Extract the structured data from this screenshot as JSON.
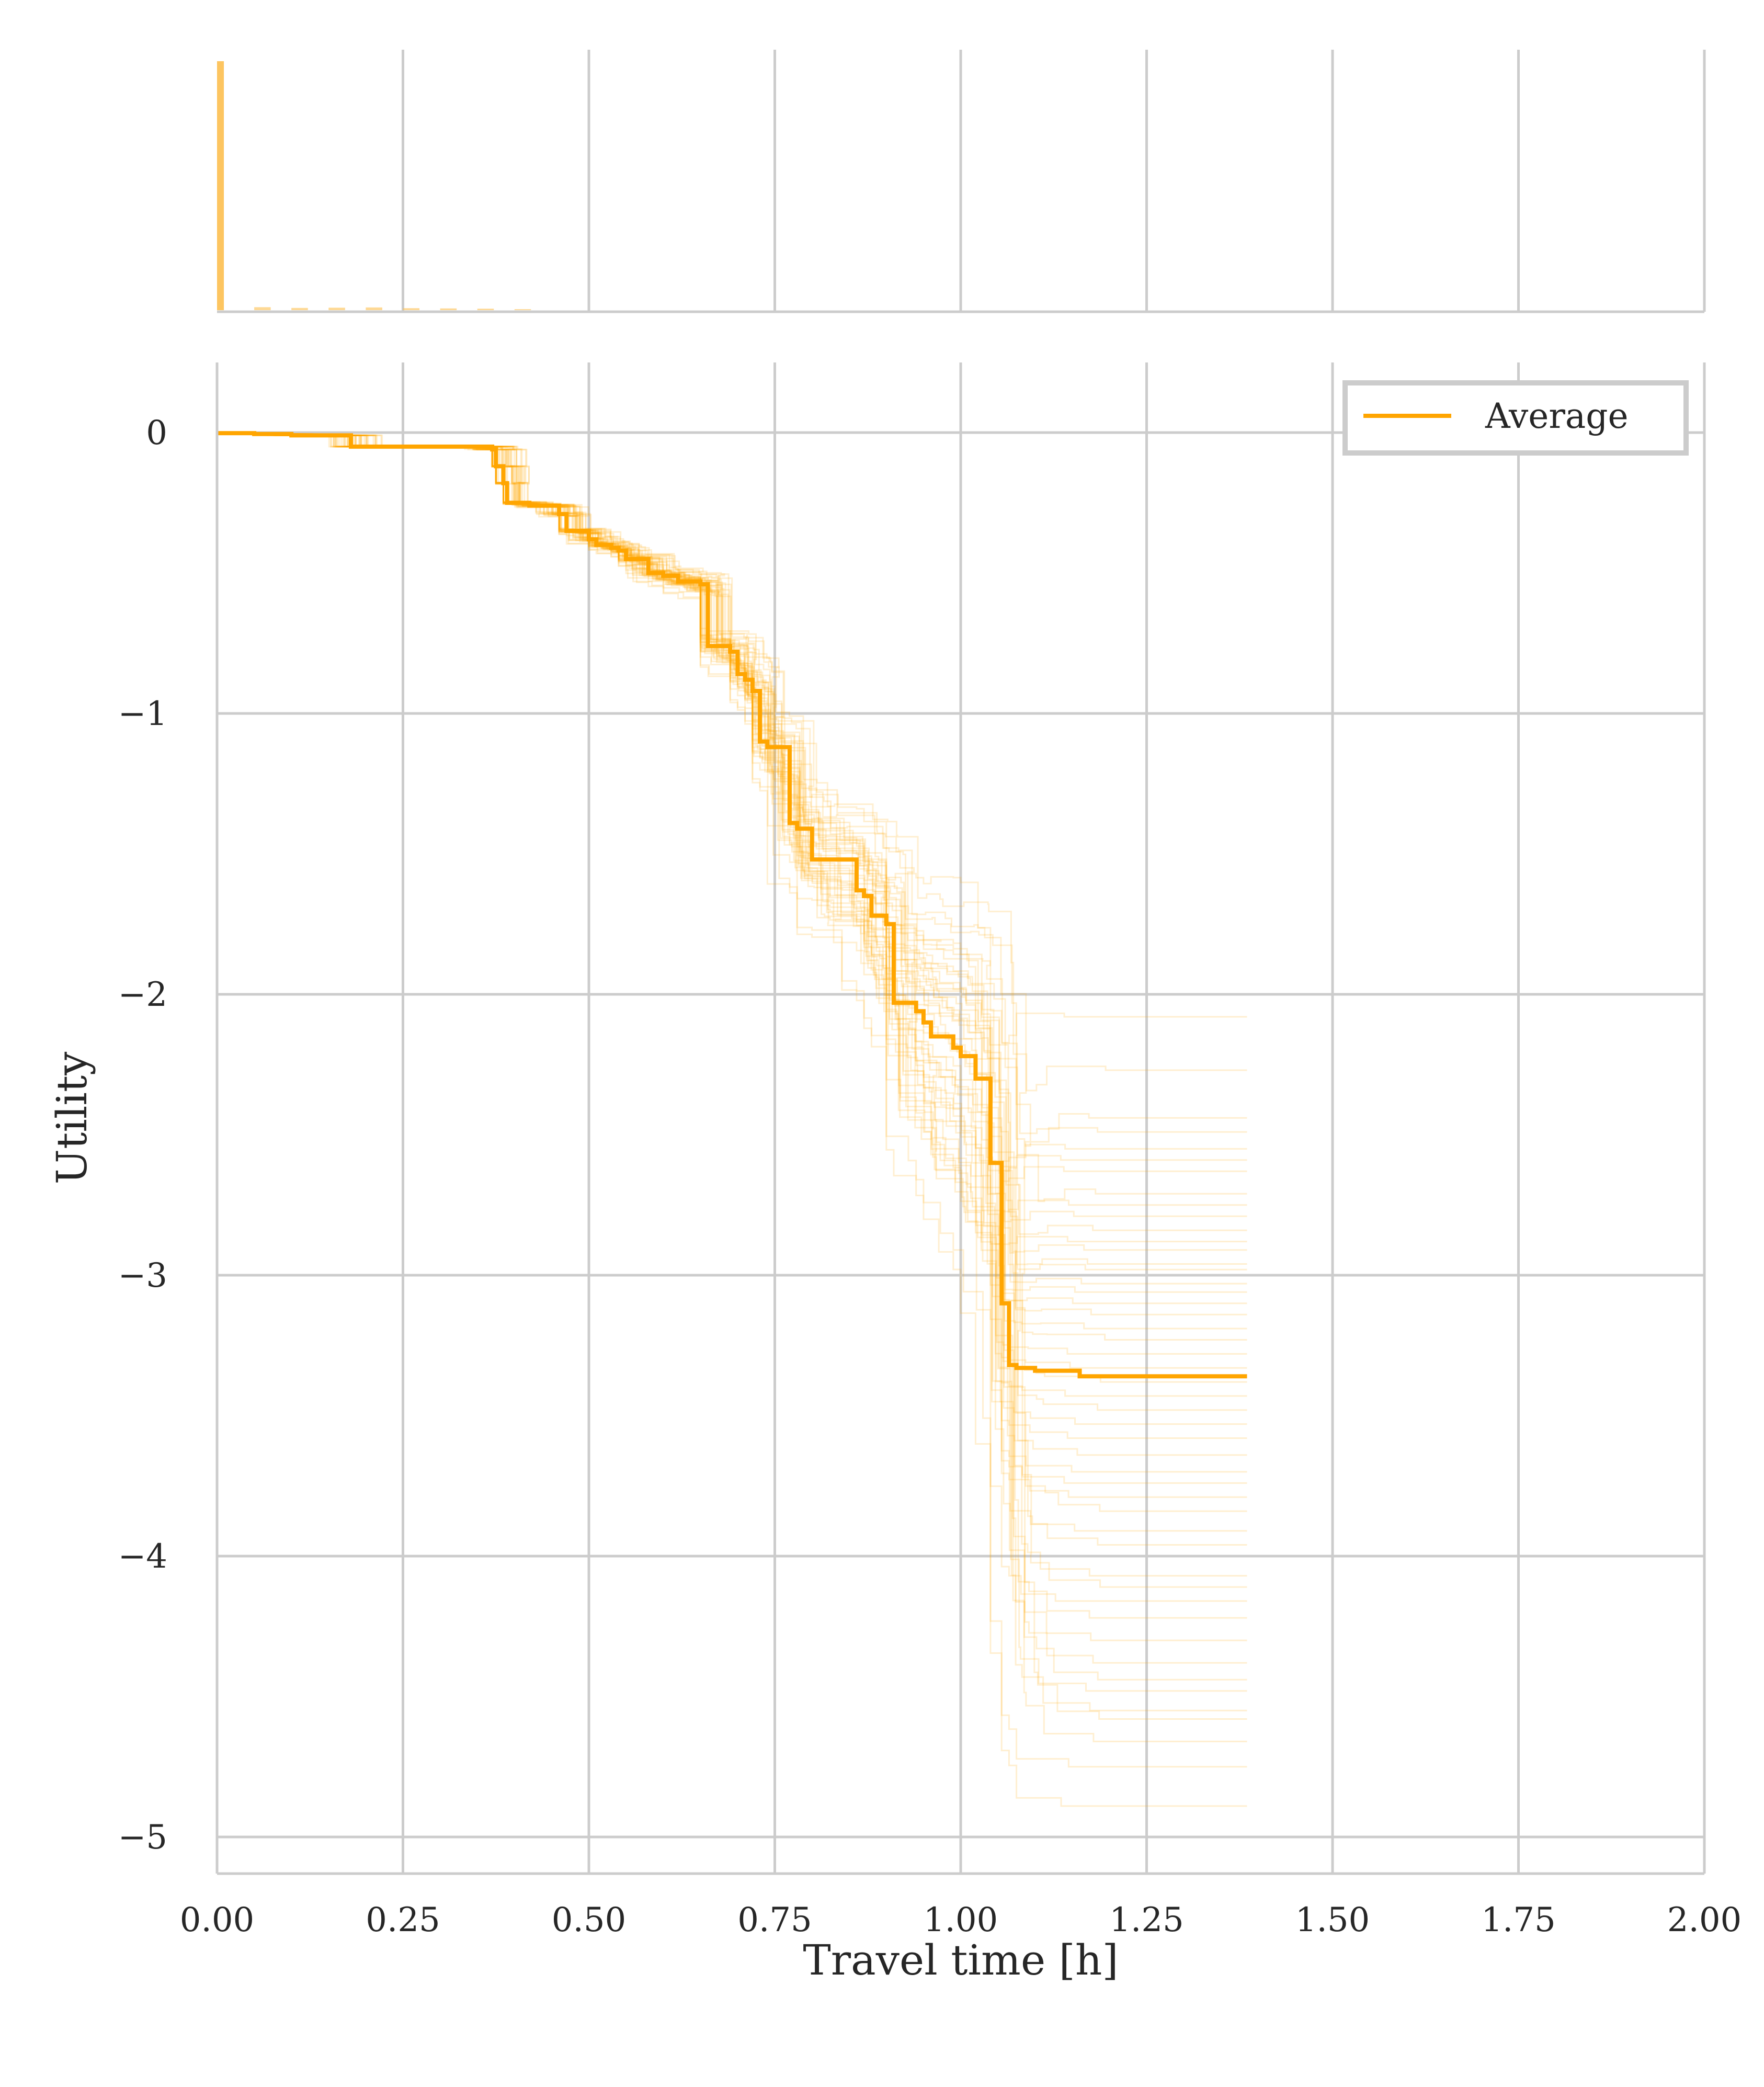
{
  "chart_data": [
    {
      "type": "bar",
      "panel": "marginal histogram of travel time",
      "x_bin_width": 0.025,
      "bins": [
        {
          "x": 0.0,
          "value": 1.0
        },
        {
          "x": 0.025,
          "value": 0.0
        },
        {
          "x": 0.05,
          "value": 0.012
        },
        {
          "x": 0.1,
          "value": 0.009
        },
        {
          "x": 0.15,
          "value": 0.01
        },
        {
          "x": 0.2,
          "value": 0.011
        },
        {
          "x": 0.25,
          "value": 0.008
        },
        {
          "x": 0.3,
          "value": 0.007
        },
        {
          "x": 0.35,
          "value": 0.006
        },
        {
          "x": 0.4,
          "value": 0.004
        }
      ],
      "xlim": [
        0,
        2.0
      ],
      "grid": true,
      "bar_color": "#fdbf4f"
    },
    {
      "type": "line",
      "panel": "utility vs travel time",
      "xlabel": "Travel time [h]",
      "ylabel": "Utility",
      "xlim": [
        0,
        2.0
      ],
      "ylim": [
        -5.13,
        0.25
      ],
      "x_ticks": [
        "0.00",
        "0.25",
        "0.50",
        "0.75",
        "1.00",
        "1.25",
        "1.50",
        "1.75",
        "2.00"
      ],
      "y_ticks": [
        "0",
        "−1",
        "−2",
        "−3",
        "−4",
        "−5"
      ],
      "y_tick_values": [
        0,
        -1,
        -2,
        -3,
        -4,
        -5
      ],
      "x_tick_values": [
        0,
        0.25,
        0.5,
        0.75,
        1.0,
        1.25,
        1.5,
        1.75,
        2.0
      ],
      "grid": true,
      "legend": {
        "position": "top-right",
        "entries": [
          "Average"
        ]
      },
      "average_color": "#ffa500",
      "sample_color": "#ffa500",
      "series": [
        {
          "name": "Average",
          "x": [
            0,
            0.05,
            0.1,
            0.18,
            0.37,
            0.375,
            0.385,
            0.39,
            0.42,
            0.46,
            0.47,
            0.5,
            0.51,
            0.53,
            0.54,
            0.55,
            0.58,
            0.6,
            0.62,
            0.65,
            0.66,
            0.69,
            0.7,
            0.71,
            0.72,
            0.73,
            0.74,
            0.77,
            0.78,
            0.8,
            0.81,
            0.86,
            0.87,
            0.88,
            0.9,
            0.91,
            0.94,
            0.95,
            0.96,
            0.99,
            1.0,
            1.02,
            1.04,
            1.055,
            1.065,
            1.075,
            1.1,
            1.16,
            1.385
          ],
          "y": [
            -0.002,
            -0.005,
            -0.01,
            -0.05,
            -0.06,
            -0.12,
            -0.18,
            -0.25,
            -0.26,
            -0.29,
            -0.35,
            -0.38,
            -0.4,
            -0.41,
            -0.42,
            -0.45,
            -0.5,
            -0.51,
            -0.53,
            -0.54,
            -0.76,
            -0.78,
            -0.86,
            -0.88,
            -0.92,
            -1.1,
            -1.12,
            -1.39,
            -1.41,
            -1.52,
            -1.52,
            -1.63,
            -1.65,
            -1.72,
            -1.75,
            -2.03,
            -2.06,
            -2.1,
            -2.15,
            -2.19,
            -2.22,
            -2.3,
            -2.6,
            -3.1,
            -3.32,
            -3.33,
            -3.34,
            -3.36,
            -3.36
          ]
        }
      ],
      "sample_final_values": [
        -2.08,
        -2.27,
        -2.44,
        -2.49,
        -2.55,
        -2.59,
        -2.63,
        -2.71,
        -2.75,
        -2.79,
        -2.84,
        -2.88,
        -2.91,
        -2.96,
        -2.98,
        -3.03,
        -3.06,
        -3.1,
        -3.14,
        -3.19,
        -3.23,
        -3.28,
        -3.33,
        -3.38,
        -3.43,
        -3.48,
        -3.53,
        -3.58,
        -3.64,
        -3.7,
        -3.74,
        -3.79,
        -3.84,
        -3.91,
        -3.96,
        -4.07,
        -4.11,
        -4.16,
        -4.22,
        -4.3,
        -4.38,
        -4.44,
        -4.48,
        -4.55,
        -4.58,
        -4.66,
        -4.75,
        -4.89
      ]
    }
  ]
}
